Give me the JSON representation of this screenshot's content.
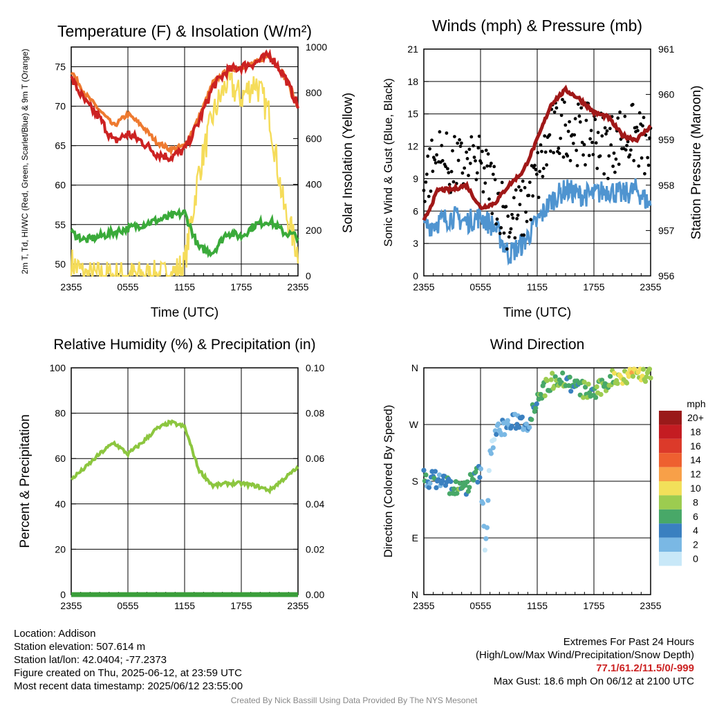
{
  "colors": {
    "temp": "#cc2222",
    "wind_chill": "#d01010",
    "dewpoint": "#3aaa3a",
    "temp9m": "#ee7a30",
    "insolation": "#f5dc5a",
    "wind": "#4f94d0",
    "gust": "#000000",
    "pressure": "#a01818",
    "rh": "#8cc63f",
    "precip": "#3a9e3a",
    "extremes": "#cc2222",
    "credit": "#888888"
  },
  "charts": [
    {
      "title": "Temperature (F) & Insolation (W/m²)",
      "xlabel": "Time (UTC)",
      "ylabel_left": "2m T, Td, HI/WC (Red, Green, Scarlet/Blue) & 9m T (Orange)",
      "ylabel_right": "Solar Insolation (Yellow)",
      "x_ticks": [
        "2355",
        "0555",
        "1155",
        "1755",
        "2355"
      ],
      "y_left_ticks": [
        "50",
        "55",
        "60",
        "65",
        "70",
        "75"
      ],
      "y_right_ticks": [
        "0",
        "200",
        "400",
        "600",
        "800",
        "1000"
      ]
    },
    {
      "title": "Winds (mph) & Pressure (mb)",
      "xlabel": "Time (UTC)",
      "ylabel_left": "Sonic Wind & Gust (Blue, Black)",
      "ylabel_right": "Station Pressure (Maroon)",
      "x_ticks": [
        "2355",
        "0555",
        "1155",
        "1755",
        "2355"
      ],
      "y_left_ticks": [
        "0",
        "3",
        "6",
        "9",
        "12",
        "15",
        "18",
        "21"
      ],
      "y_right_ticks": [
        "956",
        "957",
        "958",
        "959",
        "960",
        "961"
      ]
    },
    {
      "title": "Relative Humidity (%) & Precipitation (in)",
      "ylabel_left": "Percent & Precipitation",
      "x_ticks": [
        "2355",
        "0555",
        "1155",
        "1755",
        "2355"
      ],
      "y_left_ticks": [
        "0",
        "20",
        "40",
        "60",
        "80",
        "100"
      ],
      "y_right_ticks": [
        "0.00",
        "0.02",
        "0.04",
        "0.06",
        "0.08",
        "0.10"
      ]
    },
    {
      "title": "Wind Direction",
      "ylabel_left": "Direction (Colored By Speed)",
      "x_ticks": [
        "2355",
        "0555",
        "1155",
        "1755",
        "2355"
      ],
      "y_left_ticks": [
        "N",
        "E",
        "S",
        "W",
        "N"
      ],
      "colorbar_title": "mph",
      "colorbar_labels": [
        "20+",
        "18",
        "16",
        "14",
        "12",
        "10",
        "8",
        "6",
        "4",
        "2",
        "0"
      ],
      "colorbar_colors": [
        "#9a1a1a",
        "#c41c22",
        "#dc3a2a",
        "#ee6030",
        "#f8a048",
        "#f2e05a",
        "#9ccc50",
        "#48a868",
        "#3a80c0",
        "#7ab8e4",
        "#c8e8f8"
      ]
    }
  ],
  "chart_data": [
    {
      "type": "line",
      "x_hours": [
        0,
        1.5,
        3,
        4.5,
        6,
        7.5,
        9,
        10.5,
        12,
        13.5,
        15,
        16.5,
        18,
        19.5,
        21,
        22.5,
        24
      ],
      "series": [
        {
          "name": "2m T",
          "axis": "left",
          "values": [
            73.5,
            70.5,
            68.5,
            65.5,
            66.5,
            65.5,
            64,
            63.5,
            64.5,
            68,
            72.5,
            74.5,
            75,
            75.5,
            76.5,
            74,
            70
          ]
        },
        {
          "name": "9m T",
          "axis": "left",
          "values": [
            74.5,
            71.5,
            69.5,
            67.5,
            69,
            67.5,
            65.5,
            64.5,
            65,
            68.5,
            73,
            74.5,
            75,
            75.5,
            76.5,
            74,
            70
          ]
        },
        {
          "name": "Td",
          "axis": "left",
          "values": [
            54,
            53,
            53.5,
            54,
            54.5,
            55,
            55.5,
            56,
            56.5,
            52,
            51.5,
            54,
            53.5,
            55,
            55.5,
            54,
            53.5
          ]
        },
        {
          "name": "Insolation",
          "axis": "right",
          "values": [
            60,
            0,
            0,
            0,
            0,
            0,
            0,
            0,
            50,
            450,
            700,
            850,
            780,
            850,
            700,
            300,
            100
          ]
        }
      ],
      "ylim_left": [
        48.5,
        77.5
      ],
      "ylim_right": [
        0,
        1000
      ]
    },
    {
      "type": "line",
      "x_hours": [
        0,
        1.5,
        3,
        4.5,
        6,
        7.5,
        9,
        10.5,
        12,
        13.5,
        15,
        16.5,
        18,
        19.5,
        21,
        22.5,
        24
      ],
      "series": [
        {
          "name": "Sonic Wind",
          "axis": "left",
          "values": [
            4.5,
            5,
            5.5,
            5,
            5.5,
            4.5,
            2,
            3,
            5,
            7,
            8,
            7.5,
            7.5,
            8,
            7.5,
            8,
            6.5
          ]
        },
        {
          "name": "Gust",
          "axis": "left",
          "values": [
            9,
            11,
            10,
            10,
            10,
            8,
            5,
            6,
            9,
            13,
            14,
            13,
            13,
            12,
            13,
            13,
            11
          ]
        },
        {
          "name": "Station Pressure",
          "axis": "right",
          "values": [
            957.2,
            957.9,
            957.9,
            958.0,
            957.5,
            957.6,
            958.0,
            958.3,
            959.0,
            959.8,
            960.1,
            959.9,
            959.6,
            959.5,
            959.1,
            959.0,
            959.3
          ]
        }
      ],
      "ylim_left": [
        0,
        21
      ],
      "ylim_right": [
        956,
        961
      ]
    },
    {
      "type": "line",
      "x_hours": [
        0,
        1.5,
        3,
        4.5,
        6,
        7.5,
        9,
        10.5,
        12,
        13.5,
        15,
        16.5,
        18,
        19.5,
        21,
        22.5,
        24
      ],
      "series": [
        {
          "name": "RH",
          "axis": "left",
          "values": [
            51,
            56,
            62,
            67,
            62,
            67,
            73,
            76,
            74,
            55,
            48,
            49,
            49,
            48,
            46,
            51,
            56
          ]
        },
        {
          "name": "Precipitation",
          "axis": "right",
          "values": [
            0,
            0,
            0,
            0,
            0,
            0,
            0,
            0,
            0,
            0,
            0,
            0,
            0,
            0,
            0,
            0,
            0
          ]
        }
      ],
      "ylim_left": [
        0,
        100
      ],
      "ylim_right": [
        0,
        0.1
      ]
    },
    {
      "type": "scatter",
      "x_hours": [
        0,
        1,
        2,
        3,
        4,
        5,
        6,
        6.3,
        6.5,
        7,
        8,
        9,
        10,
        11,
        12,
        13,
        14,
        15,
        16,
        17,
        18,
        19,
        20,
        21,
        22,
        23,
        24
      ],
      "direction_deg": [
        185,
        183,
        182,
        170,
        165,
        180,
        195,
        120,
        55,
        230,
        265,
        268,
        278,
        270,
        315,
        330,
        345,
        340,
        330,
        325,
        320,
        330,
        345,
        345,
        355,
        350,
        350
      ],
      "speed_mph": [
        4,
        4,
        4,
        5,
        6,
        5,
        4,
        2,
        1,
        2,
        2,
        3,
        3,
        4,
        6,
        7,
        7,
        6,
        5,
        7,
        6,
        7,
        8,
        9,
        10,
        9,
        8
      ],
      "ylim": [
        0,
        360
      ]
    }
  ],
  "info": {
    "location": "Location: Addison",
    "elevation": "Station elevation: 507.614 m",
    "latlon": "Station lat/lon: 42.0404; -77.2373",
    "created": "Figure created on Thu, 2025-06-12, at 23:59 UTC",
    "recent": "Most recent data timestamp: 2025/06/12 23:55:00"
  },
  "extremes": {
    "title": "Extremes For Past 24 Hours",
    "subtitle": "(High/Low/Max Wind/Precipitation/Snow Depth)",
    "values": "77.1/61.2/11.5/0/-999",
    "gust": "Max Gust: 18.6 mph On 06/12 at 2100 UTC"
  },
  "credit": "Created By Nick Bassill Using Data Provided By The NYS Mesonet"
}
